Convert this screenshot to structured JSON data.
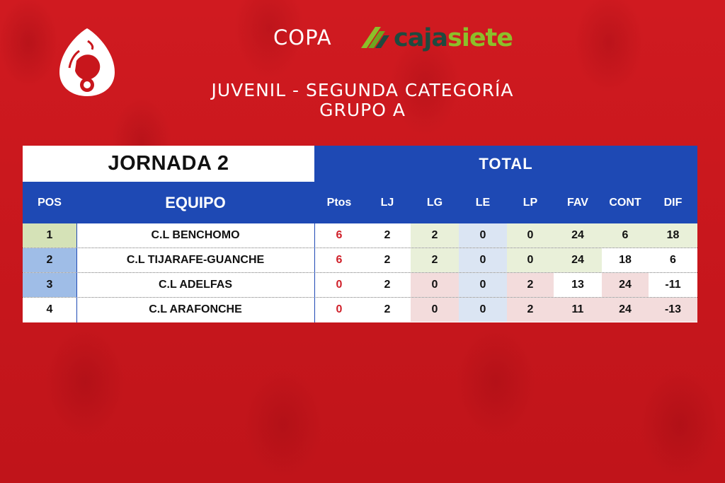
{
  "header": {
    "copa": "COPA",
    "sponsor_part1": "caja",
    "sponsor_part2": "siete",
    "line1": "JUVENIL - SEGUNDA CATEGORÍA",
    "line2": "GRUPO A"
  },
  "table": {
    "jornada": "JORNADA 2",
    "total": "TOTAL",
    "columns": [
      "POS",
      "EQUIPO",
      "Ptos",
      "LJ",
      "LG",
      "LE",
      "LP",
      "FAV",
      "CONT",
      "DIF"
    ],
    "rows": [
      {
        "pos": "1",
        "team": "C.L BENCHOMO",
        "ptos": "6",
        "lj": "2",
        "lg": "2",
        "le": "0",
        "lp": "0",
        "fav": "24",
        "cont": "6",
        "dif": "18"
      },
      {
        "pos": "2",
        "team": "C.L TIJARAFE-GUANCHE",
        "ptos": "6",
        "lj": "2",
        "lg": "2",
        "le": "0",
        "lp": "0",
        "fav": "24",
        "cont": "18",
        "dif": "6"
      },
      {
        "pos": "3",
        "team": "C.L ADELFAS",
        "ptos": "0",
        "lj": "2",
        "lg": "0",
        "le": "0",
        "lp": "2",
        "fav": "13",
        "cont": "24",
        "dif": "-11"
      },
      {
        "pos": "4",
        "team": "C.L ARAFONCHE",
        "ptos": "0",
        "lj": "2",
        "lg": "0",
        "le": "0",
        "lp": "2",
        "fav": "11",
        "cont": "24",
        "dif": "-13"
      }
    ]
  },
  "colors": {
    "background": "#c8161c",
    "table_header": "#1e49b4",
    "points_red": "#d0202a",
    "sponsor_dark": "#1f4a3f",
    "sponsor_green": "#8cbf2a"
  }
}
